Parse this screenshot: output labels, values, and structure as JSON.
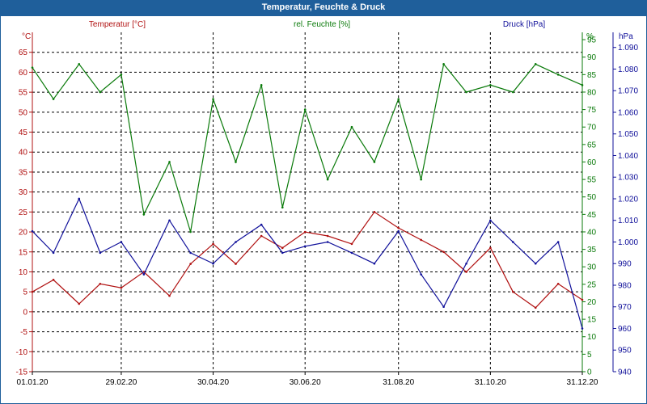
{
  "window": {
    "title": "Temperatur, Feuchte & Druck"
  },
  "colors": {
    "temperature": "#b01010",
    "humidity": "#0a7a0a",
    "pressure": "#10109a",
    "grid": "#000000",
    "titlebar": "#1f5f9b",
    "tick": "#000000"
  },
  "chart_data": {
    "type": "line",
    "title": "Temperatur, Feuchte & Druck",
    "grid": true,
    "x_ticks": [
      "01.01.20",
      "29.02.20",
      "30.04.20",
      "30.06.20",
      "31.08.20",
      "31.10.20",
      "31.12.20"
    ],
    "xlim": [
      "01.01.20",
      "31.12.20"
    ],
    "axes": {
      "left": {
        "unit": "°C",
        "ylim": [
          -15,
          70
        ],
        "ticks": [
          "-15",
          "-10",
          "-5",
          "0",
          "5",
          "10",
          "15",
          "20",
          "25",
          "30",
          "35",
          "40",
          "45",
          "50",
          "55",
          "60",
          "65"
        ]
      },
      "right1": {
        "unit": "%",
        "ylim": [
          0,
          97.1
        ],
        "ticks": [
          "0",
          "5",
          "10",
          "15",
          "20",
          "25",
          "30",
          "35",
          "40",
          "45",
          "50",
          "55",
          "60",
          "65",
          "70",
          "75",
          "80",
          "85",
          "90",
          "95"
        ]
      },
      "right2": {
        "unit": "hPa",
        "ylim": [
          940,
          1097
        ],
        "ticks": [
          "940",
          "950",
          "960",
          "970",
          "980",
          "990",
          "1.000",
          "1.010",
          "1.020",
          "1.030",
          "1.040",
          "1.050",
          "1.060",
          "1.070",
          "1.080",
          "1.090"
        ]
      }
    },
    "series": [
      {
        "name": "Temperatur [°C]",
        "axis": "left",
        "x": [
          "01.01.20",
          "15.01.20",
          "01.02.20",
          "15.02.20",
          "29.02.20",
          "15.03.20",
          "01.04.20",
          "15.04.20",
          "30.04.20",
          "15.05.20",
          "01.06.20",
          "15.06.20",
          "30.06.20",
          "15.07.20",
          "31.07.20",
          "15.08.20",
          "31.08.20",
          "15.09.20",
          "30.09.20",
          "15.10.20",
          "31.10.20",
          "15.11.20",
          "30.11.20",
          "15.12.20",
          "31.12.20"
        ],
        "values": [
          5,
          8,
          2,
          7,
          6,
          10,
          4,
          12,
          17,
          12,
          19,
          16,
          20,
          19,
          17,
          25,
          21,
          18,
          15,
          10,
          16,
          5,
          1,
          7,
          3
        ]
      },
      {
        "name": "rel. Feuchte [%]",
        "axis": "right1",
        "x": [
          "01.01.20",
          "15.01.20",
          "01.02.20",
          "15.02.20",
          "29.02.20",
          "15.03.20",
          "01.04.20",
          "15.04.20",
          "30.04.20",
          "15.05.20",
          "01.06.20",
          "15.06.20",
          "30.06.20",
          "15.07.20",
          "31.07.20",
          "15.08.20",
          "31.08.20",
          "15.09.20",
          "30.09.20",
          "15.10.20",
          "31.10.20",
          "15.11.20",
          "30.11.20",
          "15.12.20",
          "31.12.20"
        ],
        "values": [
          87,
          78,
          88,
          80,
          85,
          45,
          60,
          40,
          78,
          60,
          82,
          47,
          75,
          55,
          70,
          60,
          78,
          55,
          88,
          80,
          82,
          80,
          88,
          85,
          82
        ]
      },
      {
        "name": "Druck [hPa]",
        "axis": "right2",
        "x": [
          "01.01.20",
          "15.01.20",
          "01.02.20",
          "15.02.20",
          "29.02.20",
          "15.03.20",
          "01.04.20",
          "15.04.20",
          "30.04.20",
          "15.05.20",
          "01.06.20",
          "15.06.20",
          "30.06.20",
          "15.07.20",
          "31.07.20",
          "15.08.20",
          "31.08.20",
          "15.09.20",
          "30.09.20",
          "15.10.20",
          "31.10.20",
          "15.11.20",
          "30.11.20",
          "15.12.20",
          "31.12.20"
        ],
        "values": [
          1005,
          995,
          1020,
          995,
          1000,
          985,
          1010,
          995,
          990,
          1000,
          1008,
          995,
          998,
          1000,
          995,
          990,
          1005,
          985,
          970,
          990,
          1010,
          1000,
          990,
          1000,
          960
        ]
      }
    ]
  }
}
